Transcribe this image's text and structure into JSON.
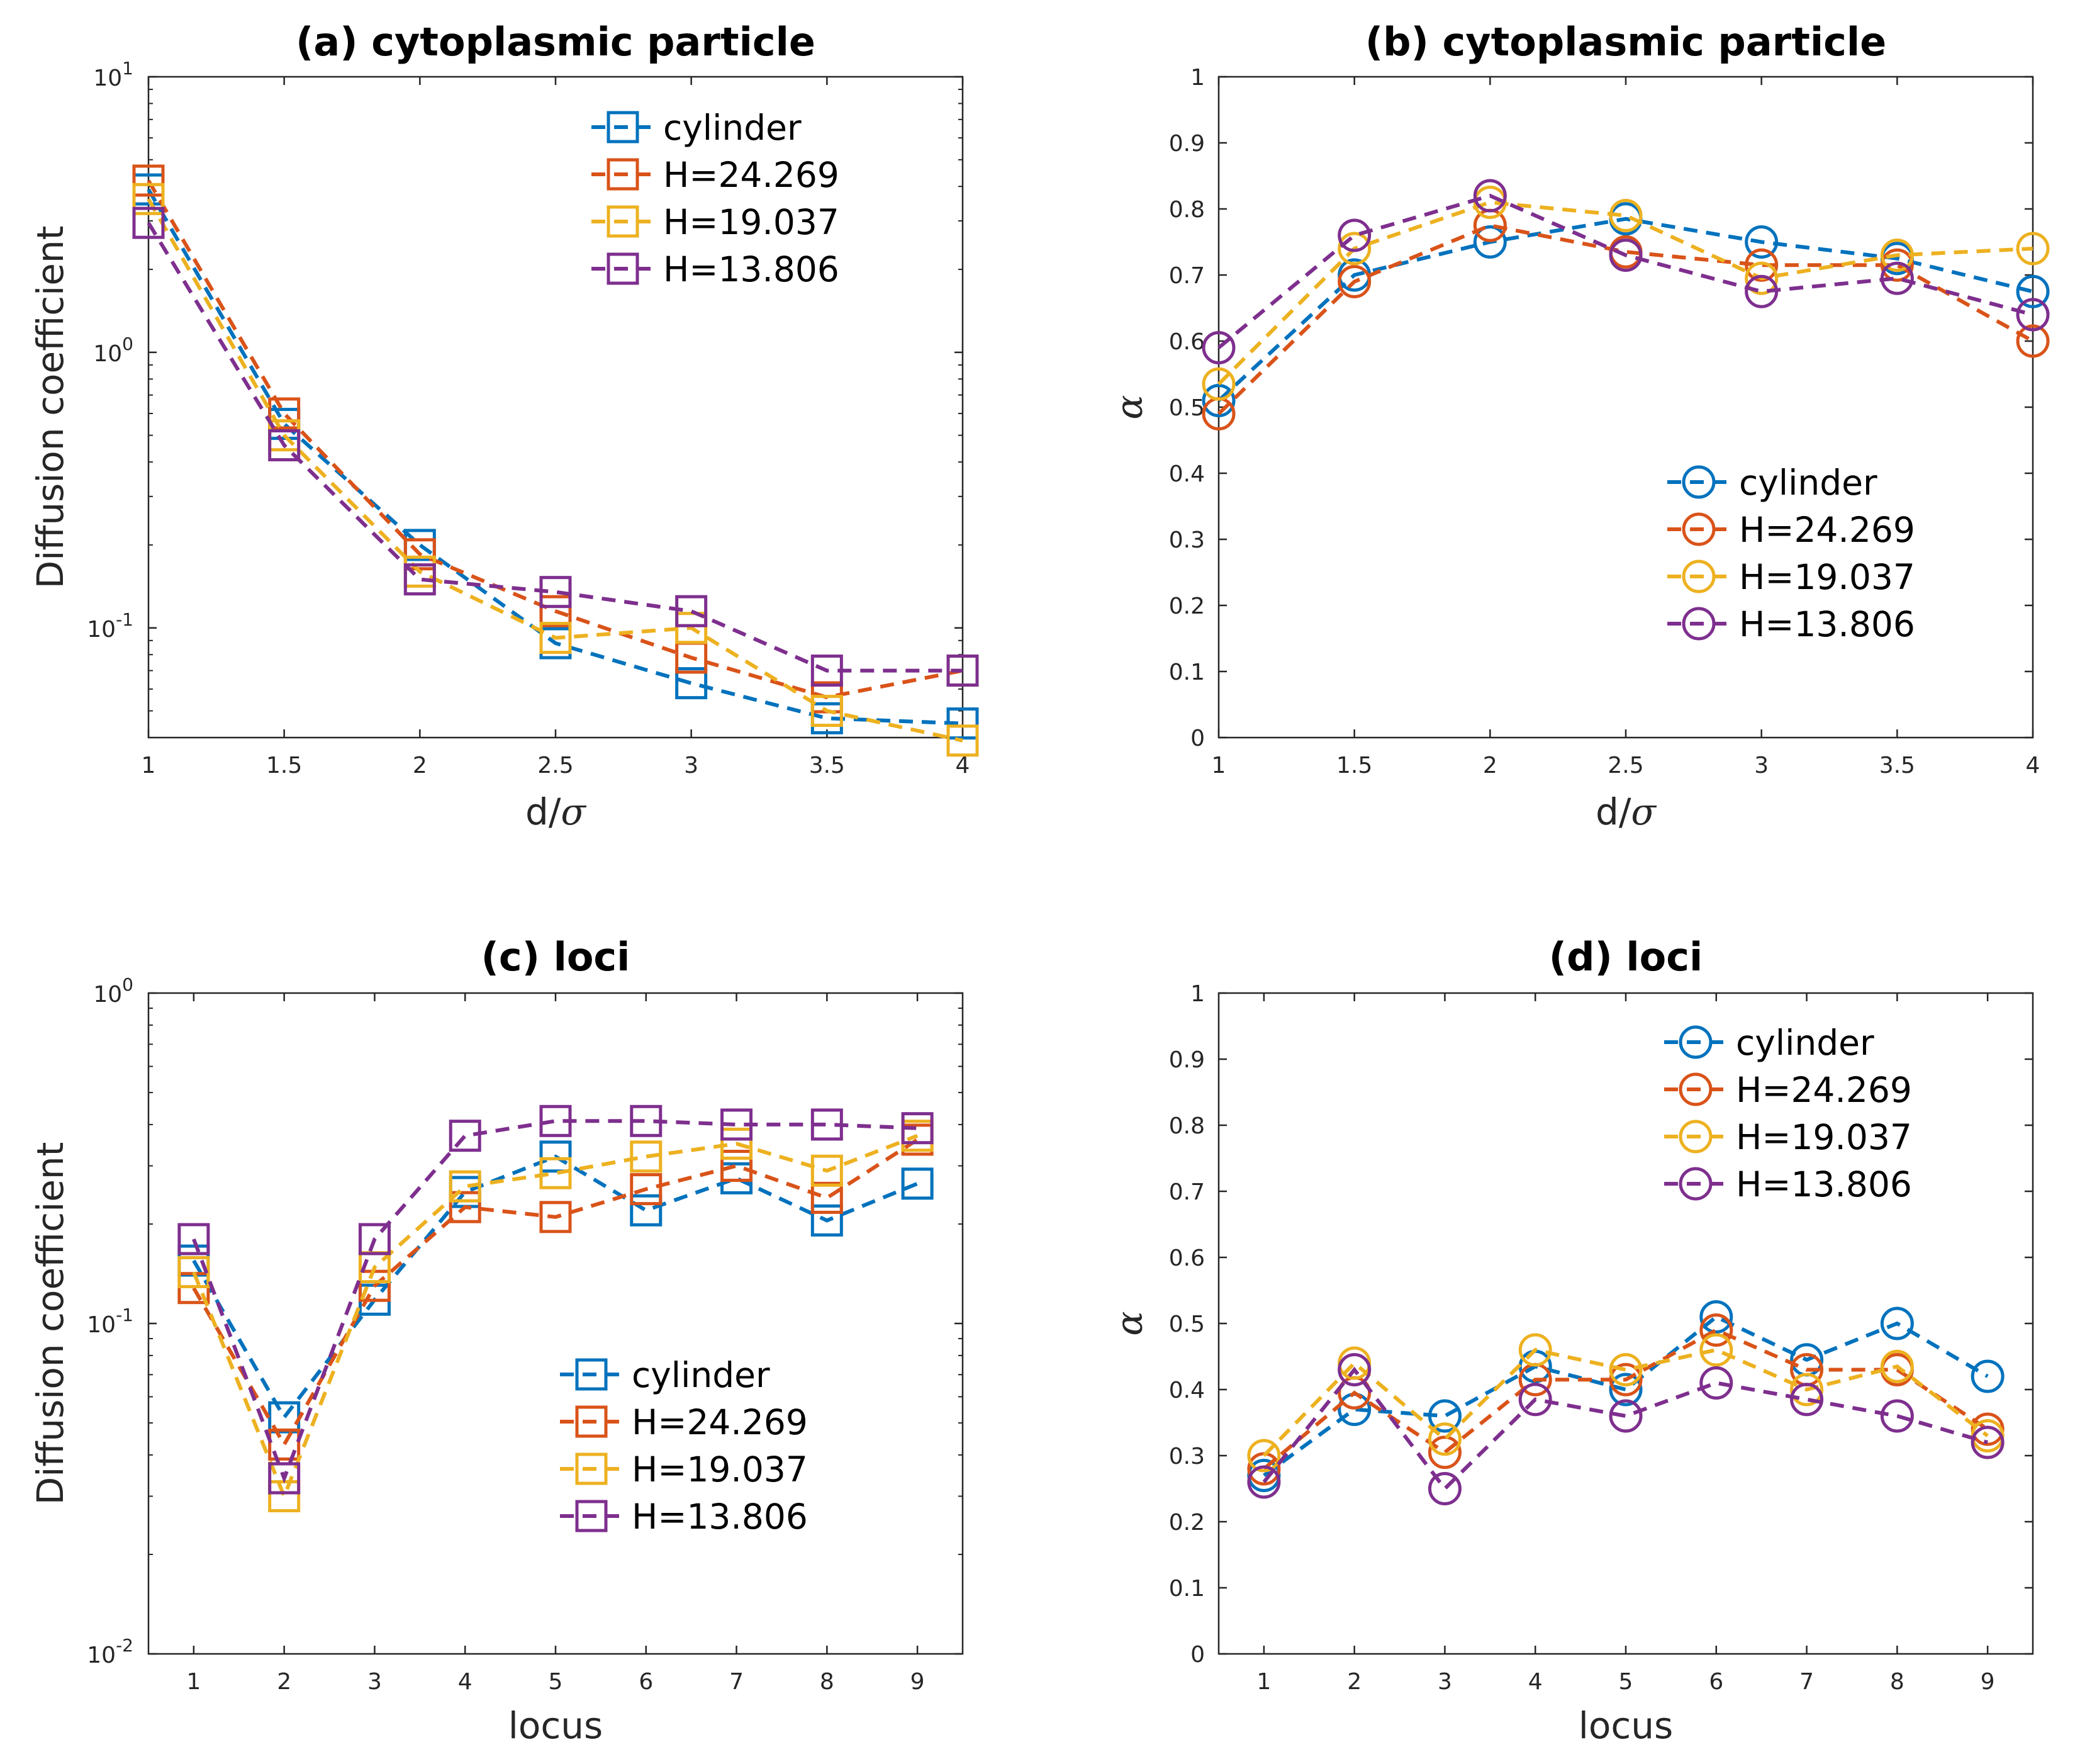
{
  "colors": {
    "cylinder": "#0072BD",
    "H=24.269": "#D95319",
    "H=19.037": "#EDB120",
    "H=13.806": "#7E2F8E",
    "axis": "#262626"
  },
  "chart_data": [
    {
      "id": "a",
      "type": "line",
      "title": "(a) cytoplasmic particle",
      "xlabel": "d/",
      "xlabel_symbol": "σ",
      "ylabel": "Diffusion coefficient",
      "yscale": "log",
      "ylim": [
        0.04,
        10
      ],
      "xlim": [
        1,
        4
      ],
      "xticks": [
        1,
        1.5,
        2,
        2.5,
        3,
        3.5,
        4
      ],
      "xtick_labels": [
        "1",
        "1.5",
        "2",
        "2.5",
        "3",
        "3.5",
        "4"
      ],
      "yticks": [
        0.1,
        1,
        10
      ],
      "ytick_labels": [
        {
          "base": "10",
          "exp": "-1"
        },
        {
          "base": "10",
          "exp": "0"
        },
        {
          "base": "10",
          "exp": "1"
        }
      ],
      "marker": "square",
      "legend_position": "top-right",
      "x": [
        1,
        1.5,
        2,
        2.5,
        3,
        3.5,
        4
      ],
      "series": [
        {
          "name": "cylinder",
          "values": [
            3.9,
            0.55,
            0.2,
            0.088,
            0.063,
            0.047,
            0.045
          ]
        },
        {
          "name": "H=24.269",
          "values": [
            4.2,
            0.6,
            0.185,
            0.115,
            0.078,
            0.056,
            0.07
          ]
        },
        {
          "name": "H=19.037",
          "values": [
            3.6,
            0.5,
            0.16,
            0.092,
            0.1,
            0.05,
            0.039
          ]
        },
        {
          "name": "H=13.806",
          "values": [
            2.95,
            0.46,
            0.15,
            0.135,
            0.115,
            0.07,
            0.07
          ]
        }
      ]
    },
    {
      "id": "b",
      "type": "line",
      "title": "(b) cytoplasmic particle",
      "xlabel": "d/",
      "xlabel_symbol": "σ",
      "ylabel": "α",
      "yscale": "linear",
      "ylim": [
        0,
        1
      ],
      "xlim": [
        1,
        4
      ],
      "xticks": [
        1,
        1.5,
        2,
        2.5,
        3,
        3.5,
        4
      ],
      "xtick_labels": [
        "1",
        "1.5",
        "2",
        "2.5",
        "3",
        "3.5",
        "4"
      ],
      "yticks": [
        0,
        0.1,
        0.2,
        0.3,
        0.4,
        0.5,
        0.6,
        0.7,
        0.8,
        0.9,
        1
      ],
      "ytick_labels": [
        "0",
        "0.1",
        "0.2",
        "0.3",
        "0.4",
        "0.5",
        "0.6",
        "0.7",
        "0.8",
        "0.9",
        "1"
      ],
      "marker": "circle",
      "legend_position": "middle-right",
      "x": [
        1,
        1.5,
        2,
        2.5,
        3,
        3.5,
        4
      ],
      "series": [
        {
          "name": "cylinder",
          "values": [
            0.51,
            0.7,
            0.75,
            0.785,
            0.75,
            0.725,
            0.675
          ]
        },
        {
          "name": "H=24.269",
          "values": [
            0.49,
            0.69,
            0.775,
            0.735,
            0.715,
            0.715,
            0.6
          ]
        },
        {
          "name": "H=19.037",
          "values": [
            0.535,
            0.74,
            0.81,
            0.79,
            0.695,
            0.73,
            0.74
          ]
        },
        {
          "name": "H=13.806",
          "values": [
            0.59,
            0.76,
            0.82,
            0.73,
            0.675,
            0.695,
            0.64
          ]
        }
      ]
    },
    {
      "id": "c",
      "type": "line",
      "title": "(c) loci",
      "xlabel": "locus",
      "xlabel_symbol": "",
      "ylabel": "Diffusion coefficient",
      "yscale": "log",
      "ylim": [
        0.01,
        1
      ],
      "xlim": [
        0.5,
        9.5
      ],
      "xticks": [
        1,
        2,
        3,
        4,
        5,
        6,
        7,
        8,
        9
      ],
      "xtick_labels": [
        "1",
        "2",
        "3",
        "4",
        "5",
        "6",
        "7",
        "8",
        "9"
      ],
      "yticks": [
        0.01,
        0.1,
        1
      ],
      "ytick_labels": [
        {
          "base": "10",
          "exp": "-2"
        },
        {
          "base": "10",
          "exp": "-1"
        },
        {
          "base": "10",
          "exp": "0"
        }
      ],
      "marker": "square",
      "legend_position": "bottom-right",
      "x": [
        1,
        2,
        3,
        4,
        5,
        6,
        7,
        8,
        9
      ],
      "series": [
        {
          "name": "cylinder",
          "values": [
            0.155,
            0.052,
            0.118,
            0.25,
            0.32,
            0.22,
            0.275,
            0.205,
            0.265
          ]
        },
        {
          "name": "H=24.269",
          "values": [
            0.128,
            0.043,
            0.13,
            0.225,
            0.21,
            0.255,
            0.3,
            0.24,
            0.36
          ]
        },
        {
          "name": "H=19.037",
          "values": [
            0.143,
            0.03,
            0.148,
            0.26,
            0.285,
            0.32,
            0.35,
            0.29,
            0.37
          ]
        },
        {
          "name": "H=13.806",
          "values": [
            0.18,
            0.034,
            0.18,
            0.37,
            0.41,
            0.41,
            0.4,
            0.4,
            0.39
          ]
        }
      ]
    },
    {
      "id": "d",
      "type": "line",
      "title": "(d) loci",
      "xlabel": "locus",
      "xlabel_symbol": "",
      "ylabel": "α",
      "yscale": "linear",
      "ylim": [
        0,
        1
      ],
      "xlim": [
        0.5,
        9.5
      ],
      "xticks": [
        1,
        2,
        3,
        4,
        5,
        6,
        7,
        8,
        9
      ],
      "xtick_labels": [
        "1",
        "2",
        "3",
        "4",
        "5",
        "6",
        "7",
        "8",
        "9"
      ],
      "yticks": [
        0,
        0.1,
        0.2,
        0.3,
        0.4,
        0.5,
        0.6,
        0.7,
        0.8,
        0.9,
        1
      ],
      "ytick_labels": [
        "0",
        "0.1",
        "0.2",
        "0.3",
        "0.4",
        "0.5",
        "0.6",
        "0.7",
        "0.8",
        "0.9",
        "1"
      ],
      "marker": "circle",
      "legend_position": "top-right",
      "x": [
        1,
        2,
        3,
        4,
        5,
        6,
        7,
        8,
        9
      ],
      "series": [
        {
          "name": "cylinder",
          "values": [
            0.27,
            0.37,
            0.36,
            0.435,
            0.4,
            0.51,
            0.445,
            0.5,
            0.42
          ]
        },
        {
          "name": "H=24.269",
          "values": [
            0.28,
            0.395,
            0.305,
            0.415,
            0.415,
            0.49,
            0.43,
            0.43,
            0.34
          ]
        },
        {
          "name": "H=19.037",
          "values": [
            0.3,
            0.44,
            0.325,
            0.46,
            0.43,
            0.46,
            0.4,
            0.435,
            0.33
          ]
        },
        {
          "name": "H=13.806",
          "values": [
            0.26,
            0.43,
            0.25,
            0.385,
            0.36,
            0.41,
            0.385,
            0.36,
            0.32
          ]
        }
      ]
    }
  ]
}
